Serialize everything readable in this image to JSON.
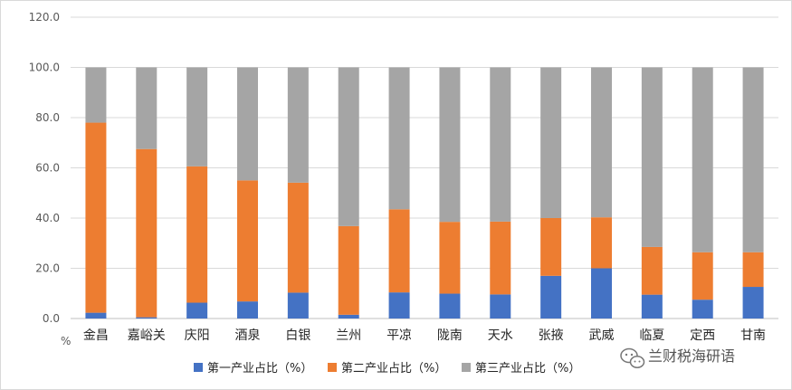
{
  "chart_data": {
    "type": "bar",
    "stacked": true,
    "categories": [
      "金昌",
      "嘉峪关",
      "庆阳",
      "酒泉",
      "白银",
      "兰州",
      "平凉",
      "陇南",
      "天水",
      "张掖",
      "武威",
      "临夏",
      "定西",
      "甘南"
    ],
    "series": [
      {
        "name": "第一产业占比（%）",
        "color": "#4472C4",
        "values": [
          2.3,
          0.5,
          6.3,
          6.8,
          10.3,
          1.5,
          10.4,
          9.9,
          9.6,
          17.0,
          20.0,
          9.5,
          7.5,
          12.6
        ]
      },
      {
        "name": "第二产业占比（%）",
        "color": "#ED7D31",
        "values": [
          75.7,
          67.0,
          54.3,
          48.2,
          43.8,
          35.3,
          33.1,
          28.6,
          29.0,
          23.0,
          20.3,
          19.0,
          18.9,
          13.8
        ]
      },
      {
        "name": "第三产业占比（%）",
        "color": "#A5A5A5",
        "values": [
          22.0,
          32.5,
          39.4,
          45.0,
          45.9,
          63.2,
          56.5,
          61.5,
          61.4,
          60.0,
          59.7,
          71.5,
          73.6,
          73.6
        ]
      }
    ],
    "ylim": [
      0,
      120
    ],
    "yticks": [
      "0.0",
      "20.0",
      "40.0",
      "60.0",
      "80.0",
      "100.0",
      "120.0"
    ],
    "ytick_values": [
      0,
      20,
      40,
      60,
      80,
      100,
      120
    ],
    "yunit": "%",
    "grid": true,
    "legend_position": "bottom"
  },
  "watermark": {
    "text": "兰财税海研语",
    "icon": "wechat-icon"
  }
}
